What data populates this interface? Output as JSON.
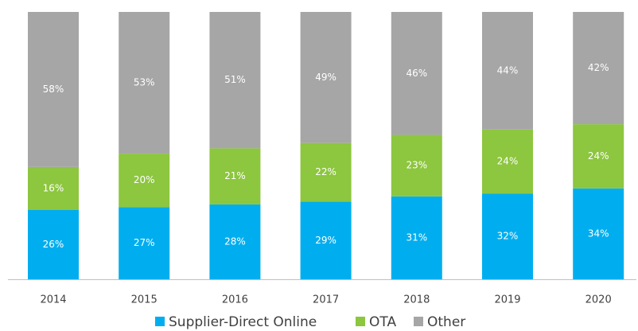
{
  "chart_data": {
    "type": "stacked_bar",
    "categories": [
      "2014",
      "2015",
      "2016",
      "2017",
      "2018",
      "2019",
      "2020"
    ],
    "series": [
      {
        "name": "Supplier-Direct Online",
        "color": "#00aeef",
        "values": [
          26,
          27,
          28,
          29,
          31,
          32,
          34
        ],
        "value_labels": [
          "26%",
          "27%",
          "28%",
          "29%",
          "31%",
          "32%",
          "34%"
        ]
      },
      {
        "name": "OTA",
        "color": "#8dc63f",
        "values": [
          16,
          20,
          21,
          22,
          23,
          24,
          24
        ],
        "value_labels": [
          "16%",
          "20%",
          "21%",
          "22%",
          "23%",
          "24%",
          "24%"
        ]
      },
      {
        "name": "Other",
        "color": "#a6a6a6",
        "values": [
          58,
          53,
          51,
          49,
          46,
          44,
          42
        ],
        "value_labels": [
          "58%",
          "53%",
          "51%",
          "49%",
          "46%",
          "44%",
          "42%"
        ]
      }
    ],
    "legend": "bottom"
  }
}
